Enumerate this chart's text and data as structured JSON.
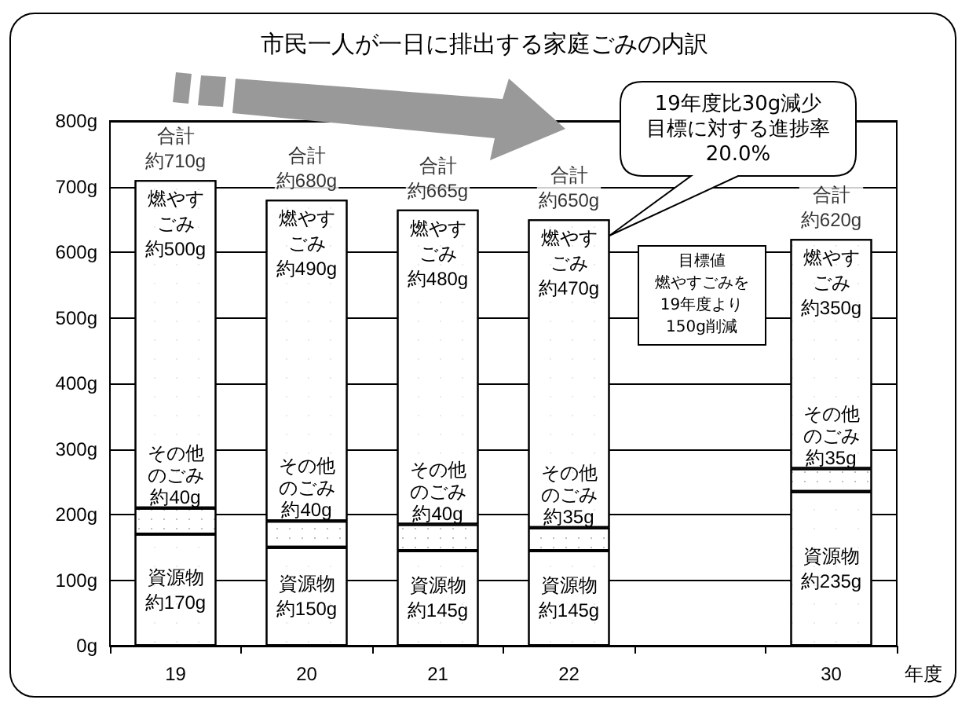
{
  "chart_data": {
    "type": "bar",
    "stacked": true,
    "title": "市民一人が一日に排出する家庭ごみの内訳",
    "xlabel": "年度",
    "categories": [
      "19",
      "20",
      "21",
      "22",
      null,
      "30"
    ],
    "series": [
      {
        "name": "資源物",
        "color": "#ffffff",
        "values": [
          170,
          150,
          145,
          145,
          null,
          235
        ],
        "value_labels": [
          "約170g",
          "約150g",
          "約145g",
          "約145g",
          null,
          "約235g"
        ]
      },
      {
        "name": "その他のごみ",
        "color": "#ffffff",
        "values": [
          40,
          40,
          40,
          35,
          null,
          35
        ],
        "value_labels": [
          "約40g",
          "約40g",
          "約40g",
          "約35g",
          null,
          "約35g"
        ]
      },
      {
        "name": "燃やすごみ",
        "color": "#ffffff",
        "values": [
          500,
          490,
          480,
          470,
          null,
          350
        ],
        "value_labels": [
          "約500g",
          "約490g",
          "約480g",
          "約470g",
          null,
          "約350g"
        ]
      }
    ],
    "totals": [
      "合計約710g",
      "合計約680g",
      "合計約665g",
      "合計約650g",
      null,
      "合計約620g"
    ],
    "ylim": [
      0,
      800
    ],
    "yticks": [
      {
        "value": 0,
        "label": "0g"
      },
      {
        "value": 100,
        "label": "100g"
      },
      {
        "value": 200,
        "label": "200g"
      },
      {
        "value": 300,
        "label": "300g"
      },
      {
        "value": 400,
        "label": "400g"
      },
      {
        "value": 500,
        "label": "500g"
      },
      {
        "value": 600,
        "label": "600g"
      },
      {
        "value": 700,
        "label": "700g"
      },
      {
        "value": 800,
        "label": "800g"
      }
    ],
    "grid": "y",
    "legend": false,
    "annotations": [
      "19年度比30g減少",
      "目標に対する進捗率20.0%",
      "目標値",
      "燃やすごみを19年度より150g削減"
    ]
  }
}
